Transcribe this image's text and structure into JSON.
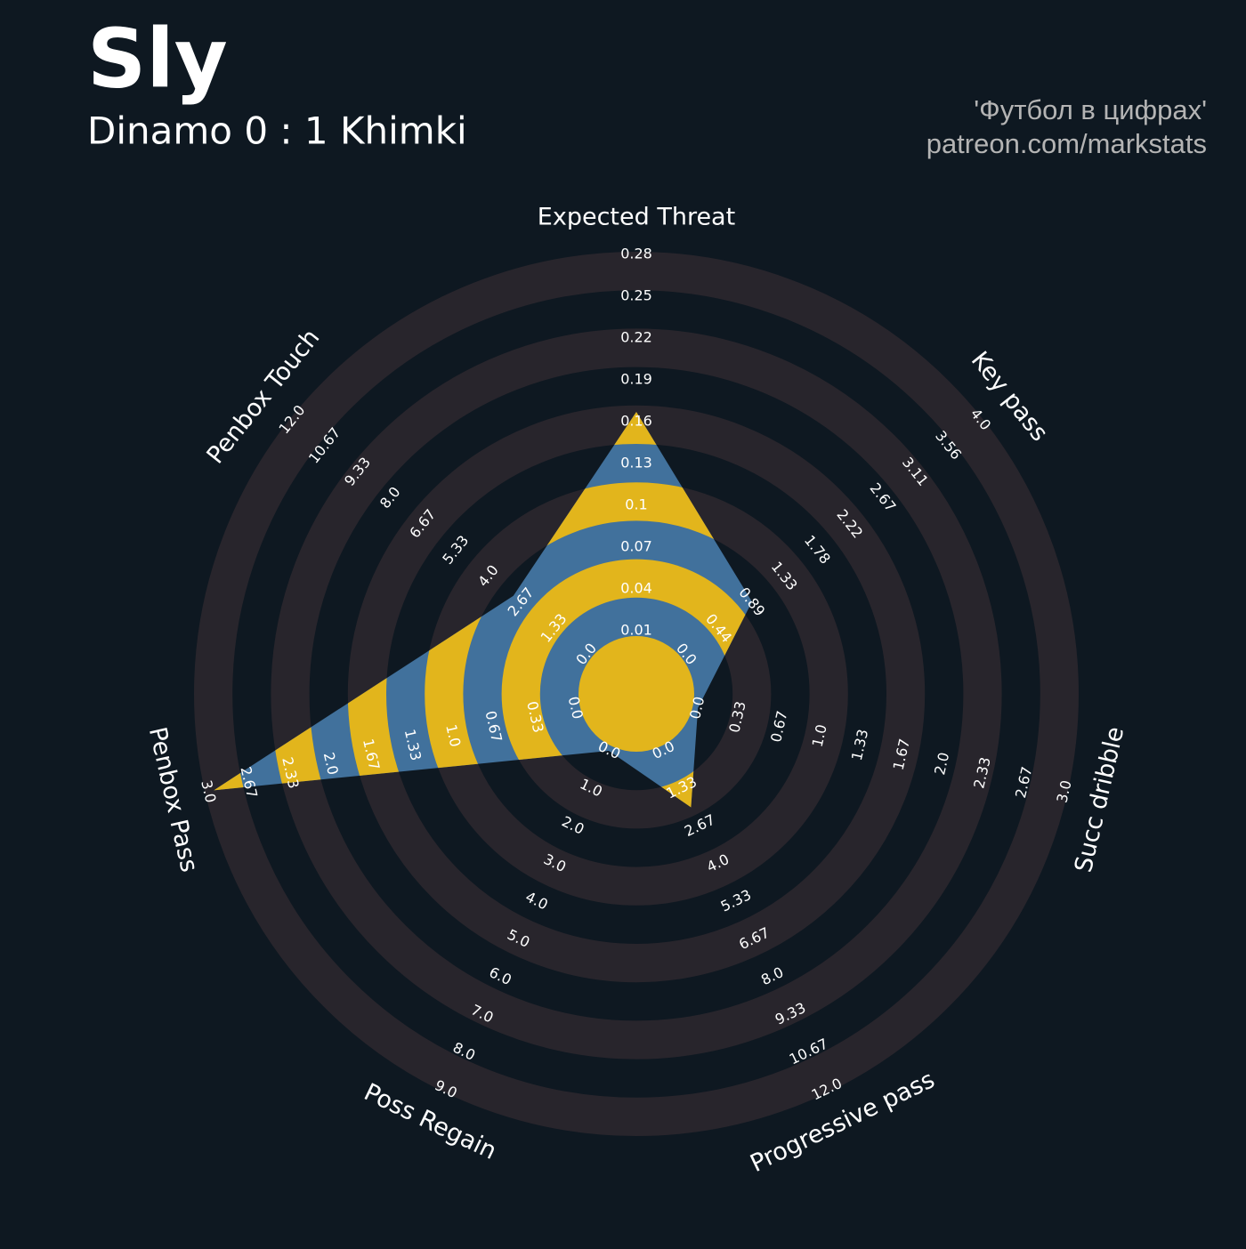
{
  "chart_data": {
    "type": "radar",
    "title": "Sly",
    "subtitle": "Dinamo 0 : 1 Khimki",
    "annotations": [
      "'Футбол в цифрах'",
      "patreon.com/markstats"
    ],
    "categories": [
      "Expected Threat",
      "Key pass",
      "Succ dribble",
      "Progressive pass",
      "Poss Regain",
      "Penbox Pass",
      "Penbox Touch"
    ],
    "values": [
      0.167,
      0.9,
      0,
      2,
      0,
      2.95,
      3
    ],
    "color": "#41719c",
    "ring_fill_color": "#e2b51c",
    "axes": [
      {
        "lim": [
          0.01,
          0.28
        ],
        "ticks": [
          0.01,
          0.04,
          0.07,
          {
            "value": 0.1,
            "label": "0.1"
          },
          0.13,
          0.16,
          0.19,
          0.22,
          0.25,
          0.28
        ]
      },
      {
        "lim": [
          0,
          4
        ],
        "ticks": [
          {
            "value": 0,
            "label": "0.0"
          },
          0.44,
          0.89,
          1.33,
          1.78,
          2.22,
          2.67,
          3.11,
          3.56,
          {
            "value": 4,
            "label": "4.0"
          }
        ]
      },
      {
        "lim": [
          0,
          3
        ],
        "ticks": [
          {
            "value": 0,
            "label": "0.0"
          },
          0.33,
          0.67,
          {
            "value": 1,
            "label": "1.0"
          },
          1.33,
          1.67,
          {
            "value": 2,
            "label": "2.0"
          },
          2.33,
          2.67,
          {
            "value": 3,
            "label": "3.0"
          }
        ]
      },
      {
        "lim": [
          0,
          12
        ],
        "ticks": [
          {
            "value": 0,
            "label": "0.0"
          },
          1.33,
          2.67,
          {
            "value": 4,
            "label": "4.0"
          },
          5.33,
          6.67,
          {
            "value": 8,
            "label": "8.0"
          },
          9.33,
          10.67,
          {
            "value": 12,
            "label": "12.0"
          }
        ]
      },
      {
        "lim": [
          0,
          9
        ],
        "ticks": [
          {
            "value": 0,
            "label": "0.0"
          },
          {
            "value": 1,
            "label": "1.0"
          },
          {
            "value": 2,
            "label": "2.0"
          },
          {
            "value": 3,
            "label": "3.0"
          },
          {
            "value": 4,
            "label": "4.0"
          },
          {
            "value": 5,
            "label": "5.0"
          },
          {
            "value": 6,
            "label": "6.0"
          },
          {
            "value": 7,
            "label": "7.0"
          },
          {
            "value": 8,
            "label": "8.0"
          },
          {
            "value": 9,
            "label": "9.0"
          }
        ]
      },
      {
        "lim": [
          0,
          3
        ],
        "ticks": [
          {
            "value": 0,
            "label": "0.0"
          },
          0.33,
          0.67,
          {
            "value": 1,
            "label": "1.0"
          },
          1.33,
          1.67,
          {
            "value": 2,
            "label": "2.0"
          },
          2.33,
          2.67,
          {
            "value": 3,
            "label": "3.0"
          }
        ]
      },
      {
        "lim": [
          0,
          12
        ],
        "ticks": [
          {
            "value": 0,
            "label": "0.0"
          },
          1.33,
          2.67,
          {
            "value": 4,
            "label": "4.0"
          },
          5.33,
          6.67,
          {
            "value": 8,
            "label": "8.0"
          },
          9.33,
          10.67,
          {
            "value": 12,
            "label": "12.0"
          }
        ]
      }
    ]
  }
}
